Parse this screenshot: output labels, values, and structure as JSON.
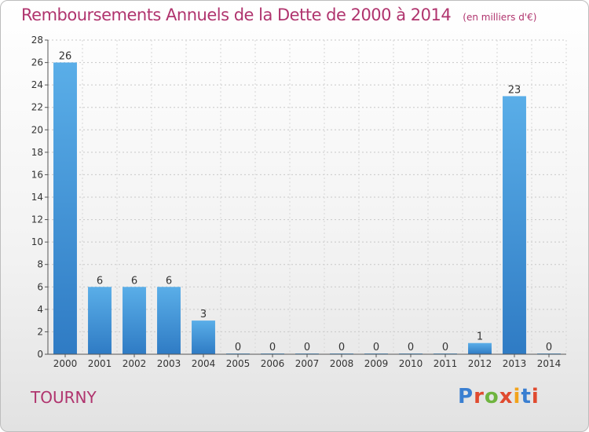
{
  "chart_data": {
    "type": "bar",
    "title": "Remboursements Annuels de la Dette de 2000 à 2014",
    "unit": "(en milliers d'€)",
    "categories": [
      "2000",
      "2001",
      "2002",
      "2003",
      "2004",
      "2005",
      "2006",
      "2007",
      "2008",
      "2009",
      "2010",
      "2011",
      "2012",
      "2013",
      "2014"
    ],
    "values": [
      26,
      6,
      6,
      6,
      3,
      0,
      0,
      0,
      0,
      0,
      0,
      0,
      1,
      23,
      0
    ],
    "xlabel": "",
    "ylabel": "",
    "ylim": [
      0,
      28
    ],
    "yticks": [
      0,
      2,
      4,
      6,
      8,
      10,
      12,
      14,
      16,
      18,
      20,
      22,
      24,
      26,
      28
    ],
    "grid": true,
    "colors": {
      "bar_light": "#5aaee8",
      "bar_dark": "#2f7bc4",
      "title": "#b0346e"
    }
  },
  "commune": "TOURNY",
  "logo": {
    "text": "Proxiti",
    "colors": [
      "#3a7fd1",
      "#e04a2f",
      "#6fb43f",
      "#e04a2f",
      "#f2a31b",
      "#3a7fd1",
      "#e04a2f"
    ]
  }
}
